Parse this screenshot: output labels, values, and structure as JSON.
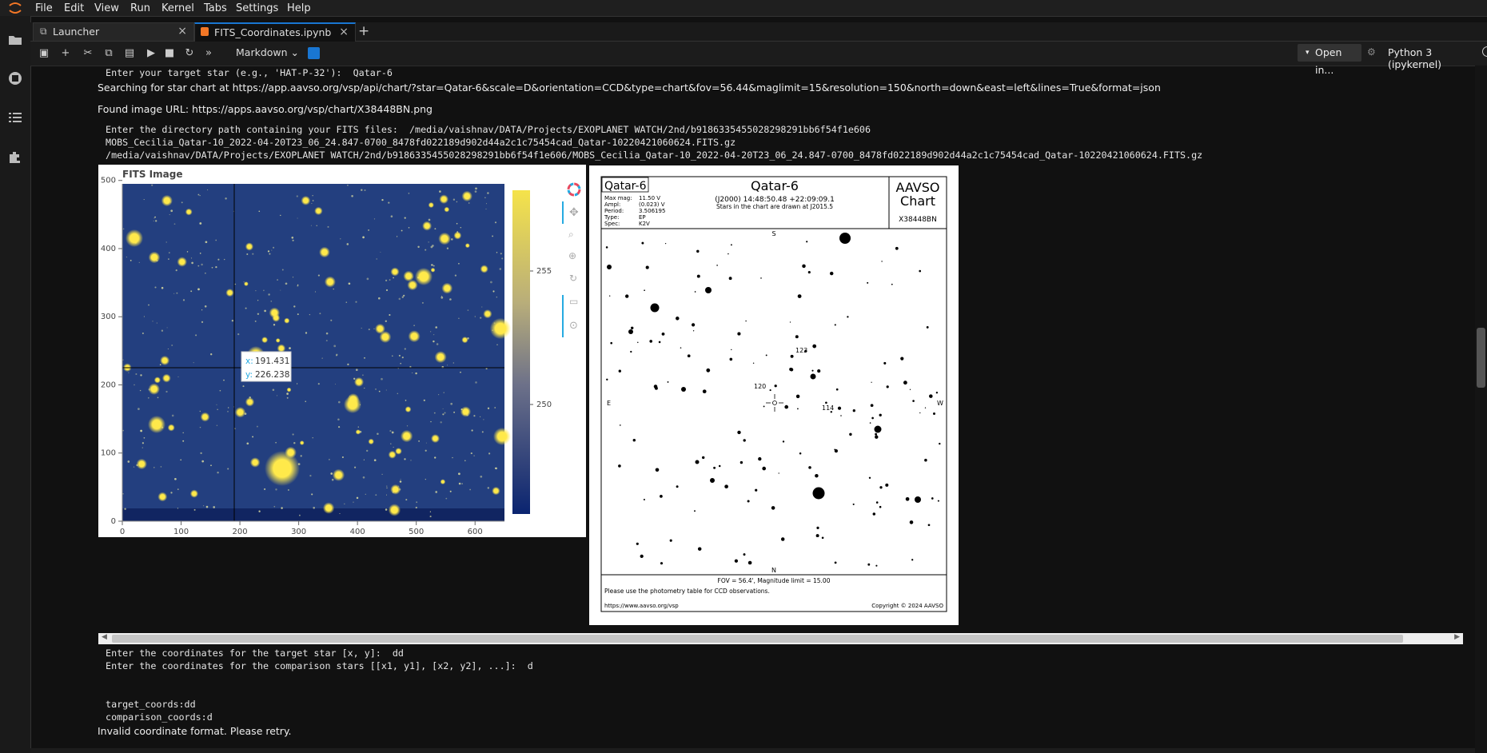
{
  "menubar": {
    "items": [
      "File",
      "Edit",
      "View",
      "Run",
      "Kernel",
      "Tabs",
      "Settings",
      "Help"
    ]
  },
  "tabs": [
    {
      "label": "Launcher",
      "icon": "launcher-icon"
    },
    {
      "label": "FITS_Coordinates.ipynb",
      "icon": "notebook-icon"
    }
  ],
  "toolbar": {
    "cell_type": "Markdown",
    "open_in": "Open in...",
    "kernel": "Python 3 (ipykernel)"
  },
  "output": {
    "line1": " Enter your target star (e.g., 'HAT-P-32'):  Qatar-6",
    "line2": "Searching for star chart at https://app.aavso.org/vsp/api/chart/?star=Qatar-6&scale=D&orientation=CCD&type=chart&fov=56.44&maglimit=15&resolution=150&north=down&east=left&lines=True&format=json",
    "line3": "Found image URL: https://apps.aavso.org/vsp/chart/X38448BN.png",
    "line4": " Enter the directory path containing your FITS files:  /media/vaishnav/DATA/Projects/EXOPLANET WATCH/2nd/b9186335455028298291bb6f54f1e606",
    "line5": " MOBS_Cecilia_Qatar-10_2022-04-20T23_06_24.847-0700_8478fd022189d902d44a2c1c75454cad_Qatar-10220421060624.FITS.gz",
    "line6": " /media/vaishnav/DATA/Projects/EXOPLANET WATCH/2nd/b9186335455028298291bb6f54f1e606/MOBS_Cecilia_Qatar-10_2022-04-20T23_06_24.847-0700_8478fd022189d902d44a2c1c75454cad_Qatar-10220421060624.FITS.gz",
    "line7": " Enter the coordinates for the target star [x, y]:  dd",
    "line8": " Enter the coordinates for the comparison stars [[x1, y1], [x2, y2], ...]:  d",
    "line9": " target_coords:dd",
    "line10": " comparison_coords:d",
    "line11": "Invalid coordinate format. Please retry."
  },
  "fits_plot": {
    "title": "FITS Image",
    "x_ticks": [
      "0",
      "100",
      "200",
      "300",
      "400",
      "500",
      "600"
    ],
    "y_ticks": [
      "0",
      "100",
      "200",
      "300",
      "400",
      "500"
    ],
    "colorbar_ticks": [
      "255",
      "250"
    ],
    "hover": {
      "x_label": "x:",
      "x_value": "191.431",
      "y_label": "y:",
      "y_value": "226.238"
    },
    "colors": {
      "background": "#1f3a78",
      "star": "#ffe94a",
      "cbar_top": "#f5e34a",
      "cbar_bottom": "#0a2470"
    }
  },
  "aavso_chart": {
    "star_name": "Qatar-6",
    "title": "Qatar-6",
    "coords": "(J2000) 14:48:50.48 +22:09:09.1",
    "note": "Stars in the chart are drawn at J2015.5",
    "brand_line1": "AAVSO",
    "brand_line2": "Chart",
    "chart_id": "X38448BN",
    "info_labels": [
      "Max mag:",
      "Ampl:",
      "Period:",
      "Type:",
      "Spec:"
    ],
    "info_values": [
      "11.50 V",
      "(0.023) V",
      "3.506195",
      "EP",
      "K2V"
    ],
    "dir_top": "S",
    "dir_bottom": "N",
    "dir_left": "E",
    "dir_right": "W",
    "labels": [
      "123",
      "120",
      "114"
    ],
    "fov": "FOV = 56.4', Magnitude limit = 15.00",
    "photometry_note": "Please use the photometry table for CCD observations.",
    "url": "https://www.aavso.org/vsp",
    "copyright": "Copyright © 2024 AAVSO"
  }
}
